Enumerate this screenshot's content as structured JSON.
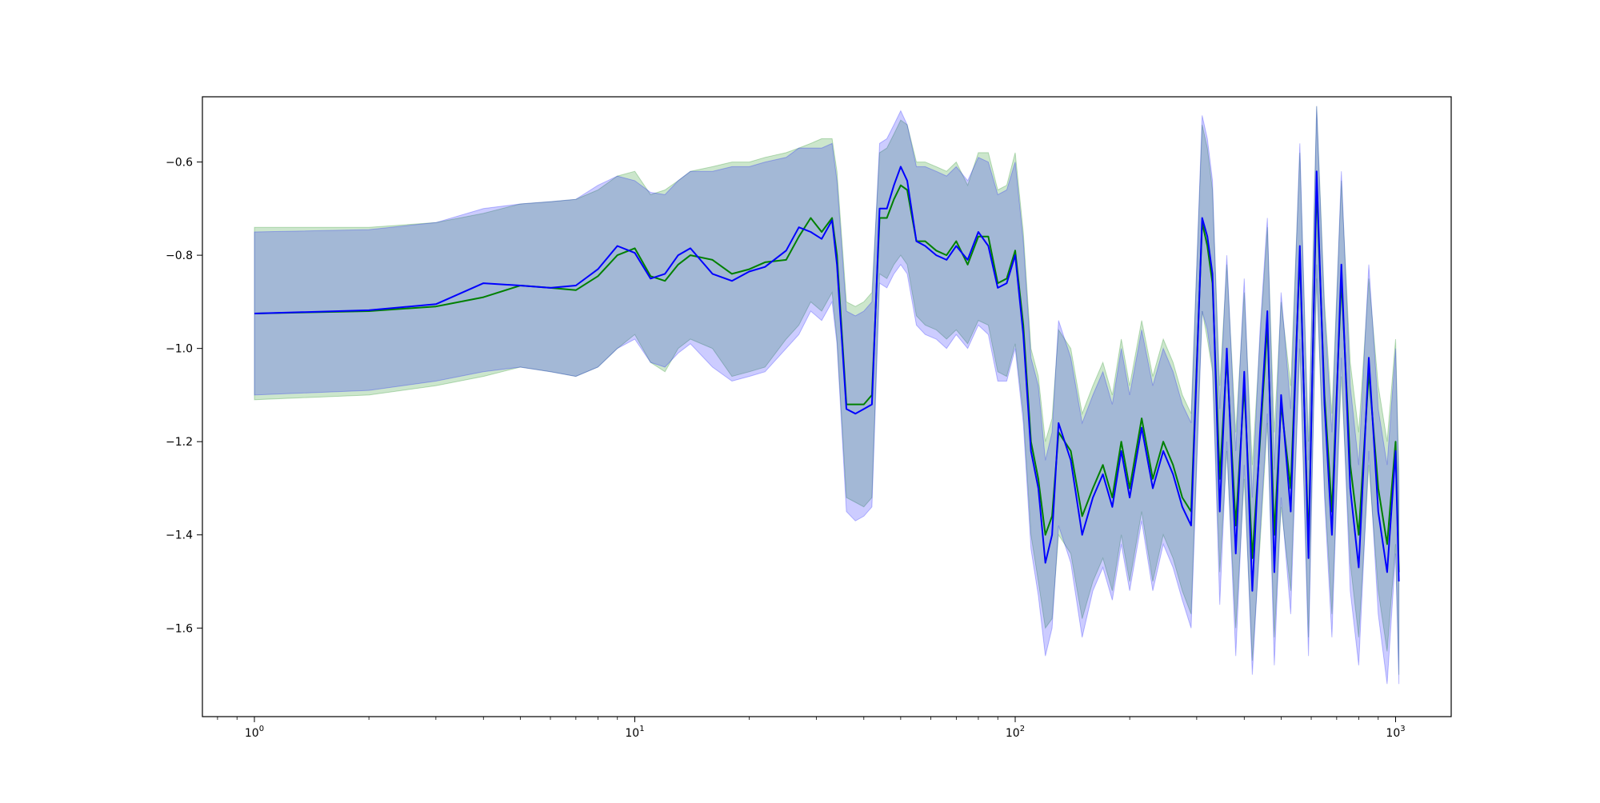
{
  "chart_data": {
    "type": "line",
    "title": "",
    "xlabel": "",
    "ylabel": "",
    "xscale": "log",
    "xlim": [
      0.73,
      1400
    ],
    "ylim": [
      -1.79,
      -0.46
    ],
    "grid": false,
    "legend": "none",
    "x_ticks": [
      {
        "value": 1,
        "base": "10",
        "exp": "0"
      },
      {
        "value": 10,
        "base": "10",
        "exp": "1"
      },
      {
        "value": 100,
        "base": "10",
        "exp": "2"
      },
      {
        "value": 1000,
        "base": "10",
        "exp": "3"
      }
    ],
    "y_ticks": [
      {
        "value": -0.6,
        "label": "−0.6"
      },
      {
        "value": -0.8,
        "label": "−0.8"
      },
      {
        "value": -1.0,
        "label": "−1.0"
      },
      {
        "value": -1.2,
        "label": "−1.2"
      },
      {
        "value": -1.4,
        "label": "−1.4"
      },
      {
        "value": -1.6,
        "label": "−1.6"
      }
    ],
    "series": [
      {
        "color": "#008000",
        "band_color": "#008000",
        "x": [
          1,
          2,
          3,
          4,
          5,
          6,
          7,
          8,
          9,
          10,
          11,
          12,
          13,
          14,
          16,
          18,
          20,
          22,
          25,
          27,
          29,
          31,
          33,
          34,
          36,
          38,
          40,
          42,
          44,
          46,
          48,
          50,
          52,
          55,
          58,
          62,
          66,
          70,
          75,
          80,
          85,
          90,
          95,
          100,
          105,
          110,
          115,
          120,
          125,
          130,
          140,
          150,
          160,
          170,
          180,
          190,
          200,
          215,
          230,
          245,
          260,
          275,
          290,
          310,
          320,
          330,
          345,
          360,
          380,
          400,
          420,
          440,
          460,
          480,
          500,
          530,
          560,
          590,
          620,
          650,
          680,
          720,
          760,
          800,
          850,
          900,
          950,
          1000,
          1020
        ],
        "mean": [
          -0.925,
          -0.92,
          -0.91,
          -0.89,
          -0.865,
          -0.87,
          -0.875,
          -0.845,
          -0.8,
          -0.785,
          -0.845,
          -0.855,
          -0.82,
          -0.8,
          -0.81,
          -0.84,
          -0.83,
          -0.815,
          -0.81,
          -0.76,
          -0.72,
          -0.75,
          -0.72,
          -0.8,
          -1.12,
          -1.12,
          -1.12,
          -1.1,
          -0.72,
          -0.72,
          -0.68,
          -0.65,
          -0.66,
          -0.77,
          -0.77,
          -0.79,
          -0.8,
          -0.77,
          -0.82,
          -0.76,
          -0.76,
          -0.86,
          -0.85,
          -0.79,
          -0.95,
          -1.2,
          -1.28,
          -1.4,
          -1.36,
          -1.18,
          -1.22,
          -1.36,
          -1.3,
          -1.25,
          -1.32,
          -1.2,
          -1.3,
          -1.15,
          -1.28,
          -1.2,
          -1.25,
          -1.32,
          -1.35,
          -0.73,
          -0.78,
          -0.86,
          -1.28,
          -1.02,
          -1.38,
          -1.08,
          -1.45,
          -1.2,
          -0.95,
          -1.4,
          -1.12,
          -1.3,
          -0.8,
          -1.42,
          -0.65,
          -1.1,
          -1.35,
          -0.85,
          -1.25,
          -1.4,
          -1.05,
          -1.3,
          -1.42,
          -1.2,
          -1.48
        ],
        "lower": [
          -1.11,
          -1.1,
          -1.08,
          -1.06,
          -1.04,
          -1.05,
          -1.06,
          -1.04,
          -1.0,
          -0.97,
          -1.03,
          -1.05,
          -1.0,
          -0.98,
          -1.0,
          -1.06,
          -1.05,
          -1.04,
          -0.98,
          -0.95,
          -0.9,
          -0.92,
          -0.88,
          -0.98,
          -1.32,
          -1.33,
          -1.34,
          -1.32,
          -0.84,
          -0.85,
          -0.82,
          -0.8,
          -0.82,
          -0.93,
          -0.95,
          -0.96,
          -0.98,
          -0.96,
          -0.99,
          -0.94,
          -0.95,
          -1.05,
          -1.06,
          -0.99,
          -1.14,
          -1.4,
          -1.5,
          -1.6,
          -1.58,
          -1.4,
          -1.44,
          -1.58,
          -1.5,
          -1.45,
          -1.52,
          -1.4,
          -1.5,
          -1.35,
          -1.5,
          -1.4,
          -1.45,
          -1.52,
          -1.57,
          -0.92,
          -0.98,
          -1.05,
          -1.48,
          -1.22,
          -1.6,
          -1.28,
          -1.67,
          -1.42,
          -1.16,
          -1.62,
          -1.34,
          -1.52,
          -1.0,
          -1.62,
          -0.85,
          -1.3,
          -1.57,
          -1.06,
          -1.46,
          -1.62,
          -1.25,
          -1.52,
          -1.65,
          -1.42,
          -1.7
        ],
        "upper": [
          -0.74,
          -0.74,
          -0.73,
          -0.71,
          -0.69,
          -0.685,
          -0.68,
          -0.66,
          -0.63,
          -0.62,
          -0.67,
          -0.66,
          -0.64,
          -0.62,
          -0.61,
          -0.6,
          -0.6,
          -0.59,
          -0.58,
          -0.57,
          -0.56,
          -0.55,
          -0.55,
          -0.62,
          -0.9,
          -0.91,
          -0.9,
          -0.88,
          -0.58,
          -0.57,
          -0.54,
          -0.51,
          -0.52,
          -0.6,
          -0.6,
          -0.61,
          -0.62,
          -0.6,
          -0.65,
          -0.58,
          -0.58,
          -0.66,
          -0.65,
          -0.58,
          -0.75,
          -1.0,
          -1.06,
          -1.2,
          -1.15,
          -0.96,
          -1.0,
          -1.14,
          -1.08,
          -1.03,
          -1.1,
          -0.98,
          -1.08,
          -0.94,
          -1.06,
          -0.98,
          -1.03,
          -1.1,
          -1.14,
          -0.52,
          -0.57,
          -0.66,
          -1.08,
          -0.82,
          -1.18,
          -0.88,
          -1.25,
          -0.98,
          -0.74,
          -1.18,
          -0.9,
          -1.08,
          -0.58,
          -1.2,
          -0.48,
          -0.9,
          -1.14,
          -0.64,
          -1.03,
          -1.18,
          -0.85,
          -1.08,
          -1.2,
          -0.98,
          -1.26
        ]
      },
      {
        "color": "#0000ff",
        "band_color": "#0000ff",
        "x": [
          1,
          2,
          3,
          4,
          5,
          6,
          7,
          8,
          9,
          10,
          11,
          12,
          13,
          14,
          16,
          18,
          20,
          22,
          25,
          27,
          29,
          31,
          33,
          34,
          36,
          38,
          40,
          42,
          44,
          46,
          48,
          50,
          52,
          55,
          58,
          62,
          66,
          70,
          75,
          80,
          85,
          90,
          95,
          100,
          105,
          110,
          115,
          120,
          125,
          130,
          140,
          150,
          160,
          170,
          180,
          190,
          200,
          215,
          230,
          245,
          260,
          275,
          290,
          310,
          320,
          330,
          345,
          360,
          380,
          400,
          420,
          440,
          460,
          480,
          500,
          530,
          560,
          590,
          620,
          650,
          680,
          720,
          760,
          800,
          850,
          900,
          950,
          1000,
          1020
        ],
        "mean": [
          -0.925,
          -0.918,
          -0.905,
          -0.86,
          -0.865,
          -0.87,
          -0.865,
          -0.83,
          -0.78,
          -0.795,
          -0.85,
          -0.84,
          -0.8,
          -0.785,
          -0.84,
          -0.855,
          -0.835,
          -0.825,
          -0.79,
          -0.74,
          -0.75,
          -0.765,
          -0.725,
          -0.82,
          -1.13,
          -1.14,
          -1.13,
          -1.12,
          -0.7,
          -0.7,
          -0.65,
          -0.61,
          -0.64,
          -0.77,
          -0.78,
          -0.8,
          -0.81,
          -0.78,
          -0.81,
          -0.75,
          -0.78,
          -0.87,
          -0.86,
          -0.8,
          -0.97,
          -1.22,
          -1.3,
          -1.46,
          -1.4,
          -1.16,
          -1.24,
          -1.4,
          -1.32,
          -1.27,
          -1.34,
          -1.22,
          -1.32,
          -1.17,
          -1.3,
          -1.22,
          -1.27,
          -1.34,
          -1.38,
          -0.72,
          -0.76,
          -0.84,
          -1.35,
          -1.0,
          -1.44,
          -1.05,
          -1.52,
          -1.18,
          -0.92,
          -1.48,
          -1.1,
          -1.35,
          -0.78,
          -1.45,
          -0.62,
          -1.12,
          -1.4,
          -0.82,
          -1.3,
          -1.47,
          -1.02,
          -1.35,
          -1.48,
          -1.22,
          -1.5
        ],
        "lower": [
          -1.1,
          -1.09,
          -1.07,
          -1.05,
          -1.04,
          -1.05,
          -1.06,
          -1.04,
          -1.0,
          -0.98,
          -1.03,
          -1.04,
          -1.01,
          -0.99,
          -1.04,
          -1.07,
          -1.06,
          -1.05,
          -1.0,
          -0.97,
          -0.92,
          -0.94,
          -0.9,
          -0.99,
          -1.35,
          -1.37,
          -1.36,
          -1.34,
          -0.86,
          -0.87,
          -0.84,
          -0.82,
          -0.84,
          -0.95,
          -0.97,
          -0.98,
          -1.0,
          -0.97,
          -1.0,
          -0.95,
          -0.97,
          -1.07,
          -1.07,
          -1.0,
          -1.16,
          -1.43,
          -1.53,
          -1.66,
          -1.6,
          -1.38,
          -1.46,
          -1.62,
          -1.52,
          -1.47,
          -1.54,
          -1.42,
          -1.52,
          -1.37,
          -1.52,
          -1.42,
          -1.47,
          -1.54,
          -1.6,
          -0.92,
          -0.96,
          -1.04,
          -1.55,
          -1.2,
          -1.66,
          -1.25,
          -1.7,
          -1.4,
          -1.14,
          -1.68,
          -1.32,
          -1.57,
          -0.98,
          -1.66,
          -0.82,
          -1.32,
          -1.62,
          -1.02,
          -1.52,
          -1.68,
          -1.22,
          -1.57,
          -1.72,
          -1.44,
          -1.72
        ],
        "upper": [
          -0.75,
          -0.745,
          -0.73,
          -0.7,
          -0.69,
          -0.685,
          -0.68,
          -0.65,
          -0.63,
          -0.64,
          -0.665,
          -0.67,
          -0.64,
          -0.62,
          -0.62,
          -0.61,
          -0.61,
          -0.6,
          -0.59,
          -0.57,
          -0.57,
          -0.57,
          -0.56,
          -0.64,
          -0.92,
          -0.93,
          -0.92,
          -0.9,
          -0.56,
          -0.55,
          -0.52,
          -0.49,
          -0.52,
          -0.61,
          -0.61,
          -0.62,
          -0.63,
          -0.61,
          -0.64,
          -0.59,
          -0.6,
          -0.67,
          -0.66,
          -0.6,
          -0.77,
          -1.02,
          -1.08,
          -1.24,
          -1.18,
          -0.94,
          -1.02,
          -1.16,
          -1.1,
          -1.05,
          -1.12,
          -1.0,
          -1.1,
          -0.96,
          -1.08,
          -1.0,
          -1.05,
          -1.12,
          -1.16,
          -0.5,
          -0.55,
          -0.64,
          -1.13,
          -0.8,
          -1.22,
          -0.85,
          -1.32,
          -0.96,
          -0.72,
          -1.26,
          -0.88,
          -1.13,
          -0.56,
          -1.24,
          -0.48,
          -0.92,
          -1.18,
          -0.62,
          -1.08,
          -1.25,
          -0.82,
          -1.13,
          -1.25,
          -1.0,
          -1.3
        ]
      }
    ]
  }
}
